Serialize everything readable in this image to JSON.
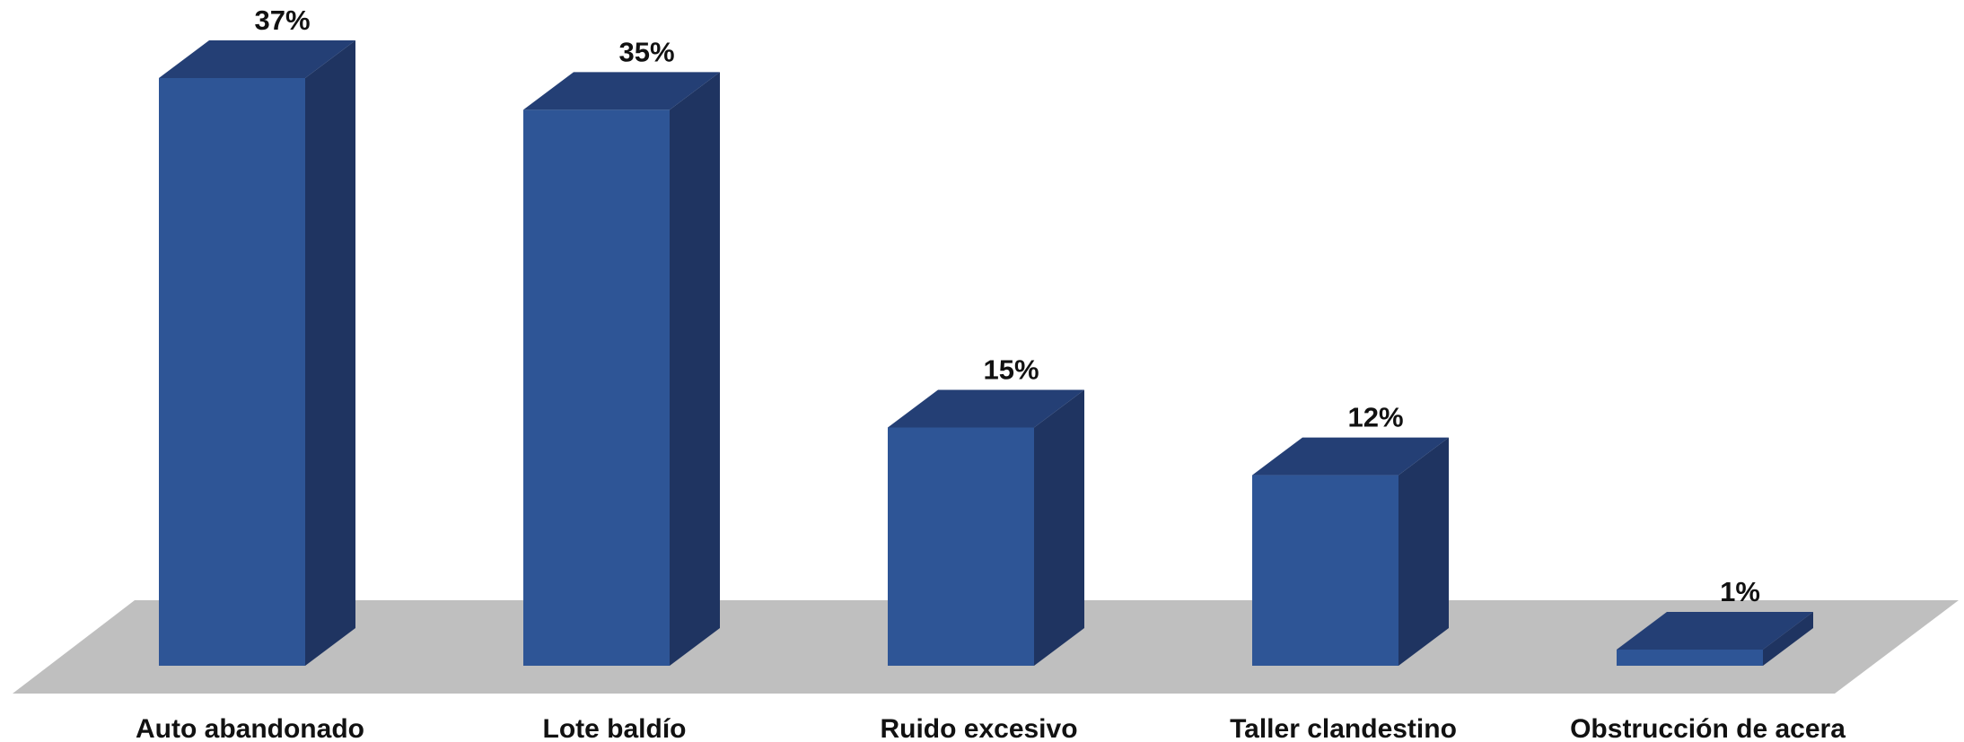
{
  "chart_data": {
    "type": "bar",
    "style": "3d-column",
    "categories": [
      "Auto abandonado",
      "Lote baldío",
      "Ruido excesivo",
      "Taller clandestino",
      "Obstrucción de acera"
    ],
    "values": [
      37,
      35,
      15,
      12,
      1
    ],
    "value_labels": [
      "37%",
      "35%",
      "15%",
      "12%",
      "1%"
    ],
    "unit": "%",
    "title": "",
    "xlabel": "",
    "ylabel": "",
    "ylim": [
      0,
      37
    ],
    "grid": false,
    "legend": "none",
    "colors": {
      "bar_front": "#2E5596",
      "bar_top": "#243F75",
      "bar_side": "#1F3461",
      "floor": "#BFBFBF"
    }
  }
}
